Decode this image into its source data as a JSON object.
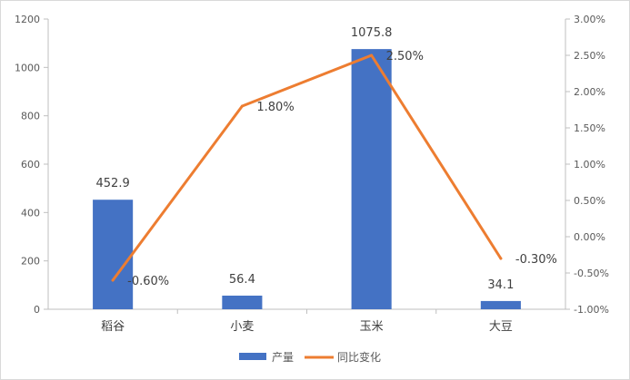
{
  "chart_data": {
    "type": "bar",
    "categories": [
      "稻谷",
      "小麦",
      "玉米",
      "大豆"
    ],
    "series": [
      {
        "name": "产量",
        "type": "bar",
        "axis": "left",
        "color": "#4472C4",
        "values": [
          452.9,
          56.4,
          1075.8,
          34.1
        ],
        "labels": [
          "452.9",
          "56.4",
          "1075.8",
          "34.1"
        ]
      },
      {
        "name": "同比变化",
        "type": "line",
        "axis": "right",
        "color": "#ED7D31",
        "values": [
          -0.6,
          1.8,
          2.5,
          -0.3
        ],
        "labels": [
          "-0.60%",
          "1.80%",
          "2.50%",
          "-0.30%"
        ]
      }
    ],
    "y_left": {
      "ylim": [
        0,
        1200
      ],
      "ticks": [
        "0",
        "200",
        "400",
        "600",
        "800",
        "1000",
        "1200"
      ]
    },
    "y_right": {
      "ylim": [
        -1.0,
        3.0
      ],
      "ticks": [
        "-1.00%",
        "-0.50%",
        "0.00%",
        "0.50%",
        "1.00%",
        "1.50%",
        "2.00%",
        "2.50%",
        "3.00%"
      ]
    },
    "grid": false,
    "legend": "bottom",
    "title": "",
    "xlabel": "",
    "ylabel": ""
  }
}
